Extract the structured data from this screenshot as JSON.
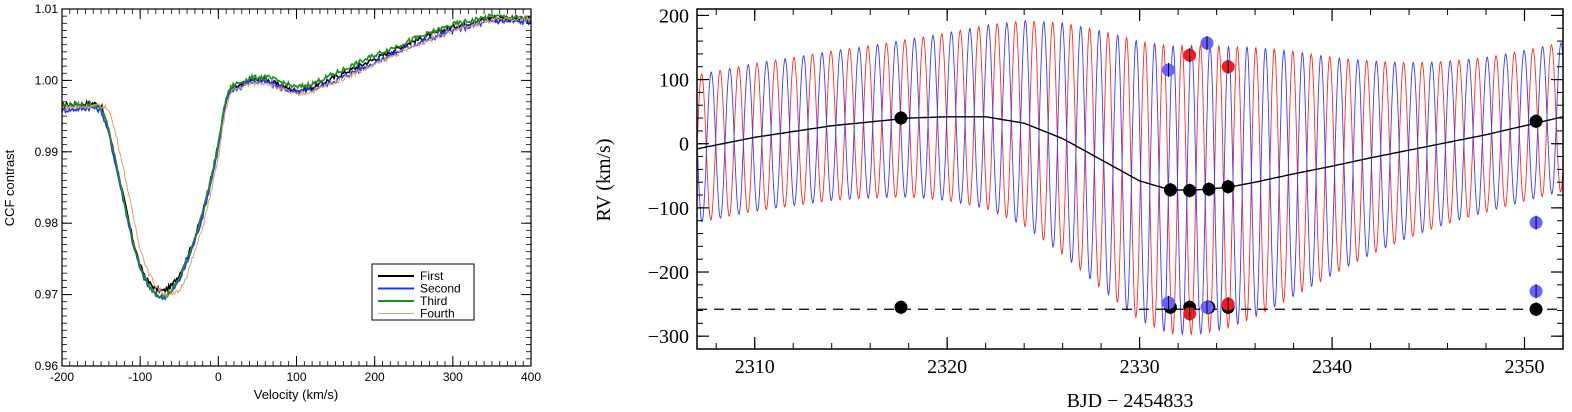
{
  "chart_data": [
    {
      "type": "line",
      "title": "",
      "xlabel": "Velocity (km/s)",
      "ylabel": "CCF contrast",
      "xlim": [
        -200,
        400
      ],
      "ylim": [
        0.96,
        1.01
      ],
      "x_ticks": [
        -200,
        -100,
        0,
        100,
        200,
        300,
        400
      ],
      "x_tick_labels": [
        "-200",
        "-100",
        "0",
        "100",
        "200",
        "300",
        "400"
      ],
      "y_ticks": [
        0.96,
        0.97,
        0.98,
        0.99,
        1.0,
        1.01
      ],
      "y_tick_labels": [
        "0.96",
        "0.97",
        "0.98",
        "0.99",
        "1.00",
        "1.01"
      ],
      "grid": false,
      "legend_position": "bottom-right",
      "series": [
        {
          "name": "First",
          "color": "#000000",
          "x": [
            -200,
            -160,
            -150,
            -140,
            -130,
            -120,
            -110,
            -100,
            -90,
            -80,
            -70,
            -60,
            -50,
            -40,
            -30,
            -20,
            -10,
            0,
            5,
            10,
            15,
            20,
            30,
            40,
            60,
            80,
            100,
            120,
            150,
            200,
            250,
            300,
            350,
            400
          ],
          "y": [
            0.9965,
            0.9968,
            0.9965,
            0.993,
            0.988,
            0.983,
            0.978,
            0.974,
            0.9718,
            0.9708,
            0.9705,
            0.9712,
            0.9728,
            0.9752,
            0.978,
            0.9815,
            0.986,
            0.991,
            0.9945,
            0.9972,
            0.9985,
            0.999,
            0.9993,
            1.0,
            1.0002,
            0.9992,
            0.9985,
            0.999,
            1.0005,
            1.003,
            1.0055,
            1.0075,
            1.0088,
            1.0085
          ]
        },
        {
          "name": "Second",
          "color": "#2233ff",
          "x": [
            -200,
            -160,
            -150,
            -140,
            -130,
            -120,
            -110,
            -100,
            -90,
            -80,
            -70,
            -60,
            -50,
            -40,
            -30,
            -20,
            -10,
            0,
            5,
            10,
            15,
            20,
            30,
            40,
            60,
            80,
            100,
            120,
            150,
            200,
            250,
            300,
            350,
            400
          ],
          "y": [
            0.9958,
            0.9962,
            0.9958,
            0.9925,
            0.9875,
            0.9825,
            0.9775,
            0.9735,
            0.9712,
            0.97,
            0.9696,
            0.9703,
            0.972,
            0.9745,
            0.9775,
            0.981,
            0.9855,
            0.9905,
            0.9942,
            0.997,
            0.9983,
            0.9988,
            0.9992,
            0.9998,
            0.9998,
            0.999,
            0.9983,
            0.9987,
            1.0,
            1.0025,
            1.005,
            1.007,
            1.0083,
            1.0082
          ]
        },
        {
          "name": "Third",
          "color": "#228b22",
          "x": [
            -200,
            -160,
            -150,
            -140,
            -130,
            -120,
            -110,
            -100,
            -90,
            -80,
            -70,
            -60,
            -50,
            -40,
            -30,
            -20,
            -10,
            0,
            5,
            10,
            15,
            20,
            30,
            40,
            60,
            80,
            100,
            120,
            150,
            200,
            250,
            300,
            350,
            400
          ],
          "y": [
            0.9965,
            0.9966,
            0.9962,
            0.993,
            0.988,
            0.9828,
            0.9778,
            0.9738,
            0.9714,
            0.9701,
            0.9697,
            0.9705,
            0.9723,
            0.975,
            0.978,
            0.9815,
            0.986,
            0.991,
            0.9947,
            0.9975,
            0.9988,
            0.9994,
            0.9998,
            1.0003,
            1.0005,
            0.9998,
            0.999,
            0.9995,
            1.001,
            1.0035,
            1.0058,
            1.0078,
            1.009,
            1.0086
          ]
        },
        {
          "name": "Fourth",
          "color": "#dda070",
          "x": [
            -200,
            -160,
            -150,
            -140,
            -130,
            -120,
            -110,
            -100,
            -90,
            -80,
            -70,
            -60,
            -50,
            -40,
            -30,
            -20,
            -10,
            0,
            5,
            10,
            15,
            20,
            30,
            40,
            60,
            80,
            100,
            120,
            150,
            200,
            250,
            300,
            350,
            400
          ],
          "y": [
            0.9962,
            0.9964,
            0.9964,
            0.996,
            0.992,
            0.987,
            0.9815,
            0.9765,
            0.9732,
            0.9712,
            0.9702,
            0.9698,
            0.9705,
            0.9728,
            0.976,
            0.9795,
            0.984,
            0.989,
            0.993,
            0.9962,
            0.998,
            0.9988,
            0.999,
            0.9995,
            0.9997,
            0.9988,
            0.998,
            0.9985,
            0.9998,
            1.0022,
            1.0048,
            1.007,
            1.0084,
            1.0086
          ]
        }
      ]
    },
    {
      "type": "scatter",
      "title": "",
      "xlabel": "BJD − 2454833",
      "ylabel": "RV (km/s)",
      "xlim": [
        2307,
        2352
      ],
      "ylim": [
        -320,
        210
      ],
      "x_ticks": [
        2310,
        2320,
        2330,
        2340,
        2350
      ],
      "x_tick_labels": [
        "2310",
        "2320",
        "2330",
        "2340",
        "2350"
      ],
      "y_ticks": [
        -300,
        -200,
        -100,
        0,
        100,
        200
      ],
      "y_tick_labels": [
        "−300",
        "−200",
        "−100",
        "0",
        "100",
        "200"
      ],
      "grid": false,
      "reference_line": {
        "y": -258,
        "style": "dashed",
        "color": "#000000"
      },
      "model_curves": [
        {
          "color": "#ff2a2a",
          "period": 0.96,
          "phase": 0.0,
          "amplitude_min": 115,
          "amplitude_max": 225,
          "center_source": "third-body-curve"
        },
        {
          "color": "#3a3aff",
          "period": 0.96,
          "phase": 0.48,
          "amplitude_min": 115,
          "amplitude_max": 225,
          "center_source": "third-body-curve"
        },
        {
          "color": "#000000",
          "name": "third-body-curve",
          "x": [
            2307,
            2310,
            2314,
            2318,
            2320,
            2322,
            2324,
            2326,
            2328,
            2330,
            2331.6,
            2333,
            2334.6,
            2336,
            2338,
            2340,
            2342,
            2344,
            2346,
            2348,
            2350,
            2352
          ],
          "y": [
            -8,
            10,
            28,
            40,
            42,
            42,
            32,
            8,
            -25,
            -58,
            -72,
            -72,
            -68,
            -60,
            -47,
            -35,
            -22,
            -10,
            2,
            14,
            28,
            42
          ]
        }
      ],
      "series": [
        {
          "color": "#000000",
          "x": [
            2317.6,
            2331.6,
            2332.6,
            2333.6,
            2334.6,
            2350.6
          ],
          "y": [
            40,
            -72,
            -73,
            -71,
            -67,
            35
          ]
        },
        {
          "color": "#6a60ff",
          "x": [
            2331.5,
            2333.5,
            2350.6
          ],
          "y": [
            115,
            157,
            -123
          ]
        },
        {
          "color": "#ee1c24",
          "x": [
            2332.6,
            2334.6
          ],
          "y": [
            138,
            120
          ]
        },
        {
          "color": "#000000",
          "x": [
            2317.6,
            2331.6,
            2332.6,
            2333.6,
            2334.6,
            2350.6
          ],
          "y": [
            -255,
            -255,
            -255,
            -255,
            -255,
            -258
          ]
        },
        {
          "color": "#6a60ff",
          "x": [
            2331.5,
            2333.5,
            2350.6
          ],
          "y": [
            -248,
            -255,
            -230
          ]
        },
        {
          "color": "#ee1c24",
          "x": [
            2332.6,
            2334.6
          ],
          "y": [
            -265,
            -250
          ]
        }
      ]
    }
  ]
}
